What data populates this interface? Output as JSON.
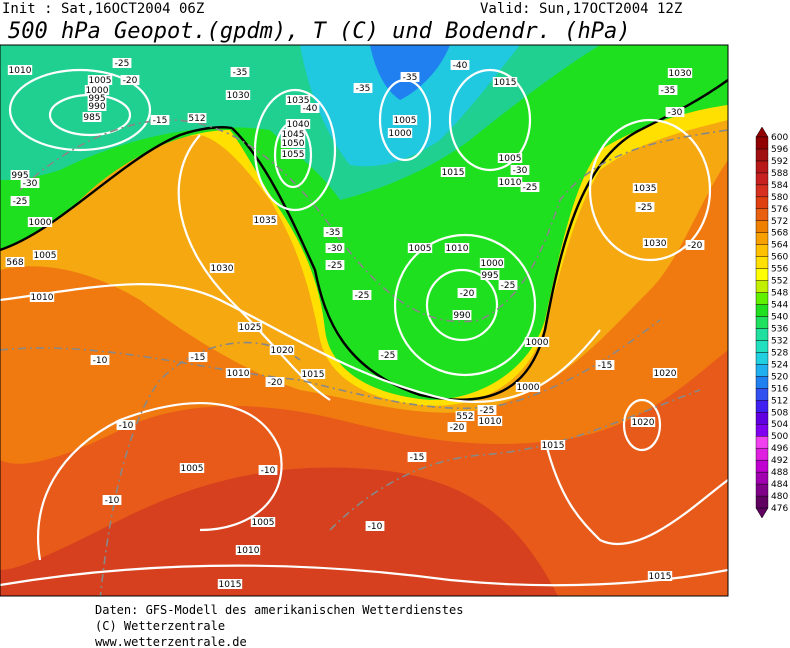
{
  "header": {
    "init": "Init : Sat,16OCT2004 06Z",
    "valid": "Valid: Sun,17OCT2004 12Z",
    "title": "500 hPa Geopot.(gpdm), T (C) und Bodendr. (hPa)"
  },
  "footer": [
    "Daten: GFS-Modell des amerikanischen Wetterdienstes",
    "(C) Wetterzentrale",
    "www.wetterzentrale.de"
  ],
  "colorbar": {
    "levels": [
      476,
      480,
      484,
      488,
      492,
      496,
      500,
      504,
      508,
      512,
      516,
      520,
      524,
      528,
      532,
      536,
      540,
      544,
      548,
      552,
      556,
      560,
      564,
      568,
      572,
      576,
      580,
      584,
      588,
      592,
      596,
      600
    ],
    "colors": [
      "#600060",
      "#80008a",
      "#a000b0",
      "#c000d0",
      "#e020e0",
      "#f040f0",
      "#8000f0",
      "#6000e0",
      "#4020f0",
      "#3050f0",
      "#2080f0",
      "#20b0f0",
      "#20d0e0",
      "#20e0c0",
      "#20e0a0",
      "#20e060",
      "#20e020",
      "#60f000",
      "#c0f000",
      "#ffff00",
      "#ffe000",
      "#ffc000",
      "#f8a000",
      "#f08000",
      "#e86010",
      "#e04010",
      "#d83020",
      "#c82020",
      "#b81818",
      "#a01010",
      "#900000"
    ]
  },
  "contour_labels": [
    "1010",
    "1005",
    "1000",
    "995",
    "990",
    "985",
    "995",
    "-30",
    "-25",
    "1000",
    "1005",
    "568",
    "1010",
    "-25",
    "-20",
    "-15",
    "512",
    "-35",
    "1030",
    "1035",
    "-40",
    "1040",
    "1045",
    "1050",
    "1055",
    "1035",
    "1030",
    "-35",
    "-30",
    "-25",
    "-35",
    "-35",
    "1005",
    "1000",
    "-40",
    "1015",
    "1030",
    "-35",
    "-30",
    "1015",
    "1005",
    "-30",
    "1010",
    "-25",
    "1035",
    "-25",
    "1030",
    "-20",
    "1005",
    "1010",
    "1000",
    "995",
    "-25",
    "-20",
    "990",
    "-25",
    "-25",
    "1000",
    "1000",
    "1025",
    "1020",
    "-15",
    "-10",
    "1010",
    "-20",
    "1015",
    "-15",
    "1020",
    "1020",
    "-25",
    "-20",
    "1010",
    "552",
    "-10",
    "-15",
    "1015",
    "1005",
    "-10",
    "-10",
    "1005",
    "-10",
    "1010",
    "1015",
    "1015"
  ]
}
